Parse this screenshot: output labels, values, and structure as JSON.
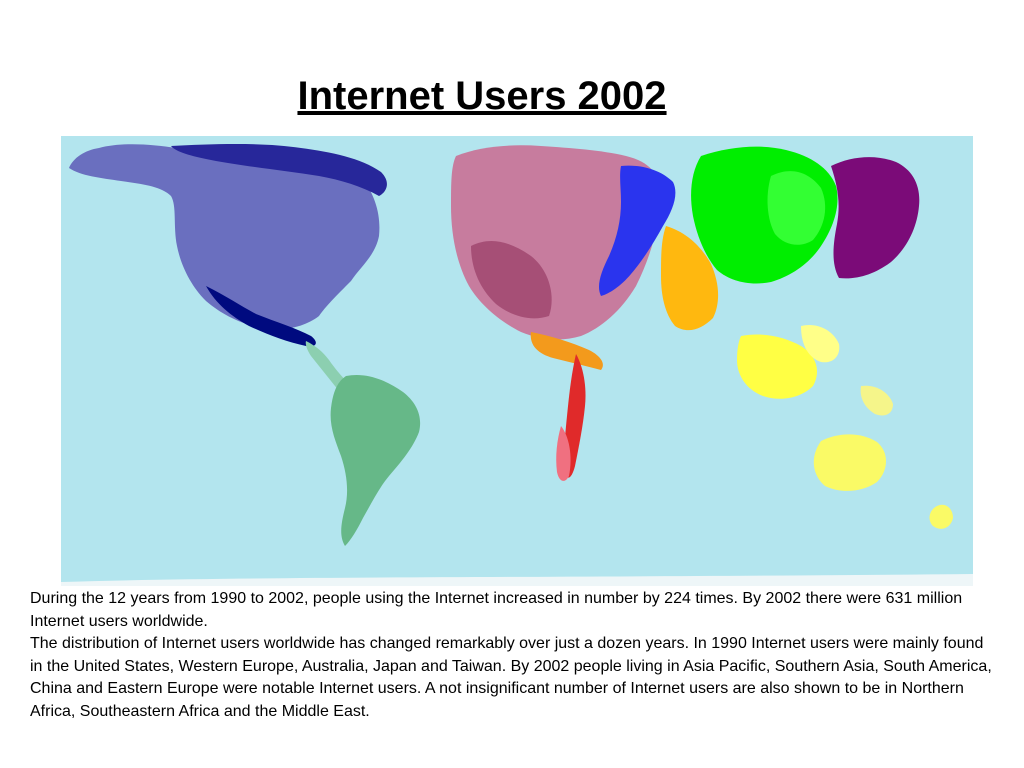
{
  "slide": {
    "title": "Internet Users 2002"
  },
  "map": {
    "ocean_color": "#b3e5ee",
    "regions": [
      {
        "name": "north-america",
        "color": "#6a6fbf"
      },
      {
        "name": "canada-arctic",
        "color": "#27279a"
      },
      {
        "name": "mexico",
        "color": "#000a7f"
      },
      {
        "name": "central-america",
        "color": "#8ccfb0"
      },
      {
        "name": "south-america",
        "color": "#66b888"
      },
      {
        "name": "western-europe",
        "color": "#c77c9e"
      },
      {
        "name": "eastern-europe",
        "color": "#2a34ee"
      },
      {
        "name": "middle-east",
        "color": "#f39a1c"
      },
      {
        "name": "africa",
        "color": "#e02a2a"
      },
      {
        "name": "southern-asia",
        "color": "#ffb80f"
      },
      {
        "name": "china",
        "color": "#00ee00"
      },
      {
        "name": "japan",
        "color": "#7b0b78"
      },
      {
        "name": "asia-pacific",
        "color": "#ffff44"
      },
      {
        "name": "australia",
        "color": "#fafa66"
      }
    ]
  },
  "description": {
    "paragraphs": [
      "During the 12 years from 1990 to 2002, people using the Internet increased in number by 224 times. By 2002 there were 631 million Internet users worldwide.",
      "The distribution of Internet users worldwide has changed remarkably over just a dozen years. In 1990 Internet users were mainly found in the United States, Western Europe, Australia, Japan and Taiwan. By 2002 people living in Asia Pacific, Southern Asia, South America, China and Eastern Europe were notable Internet users. A not insignificant number of Internet users are also shown to be in Northern Africa, Southeastern Africa and the Middle East."
    ]
  }
}
